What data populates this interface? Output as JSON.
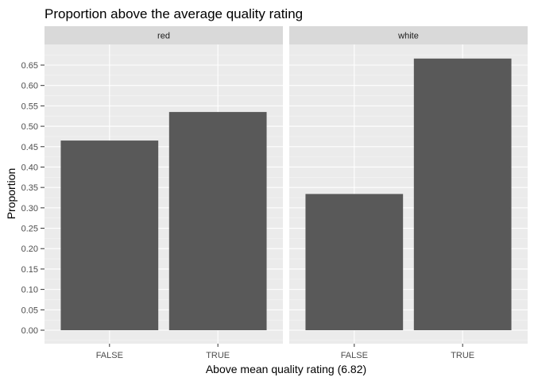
{
  "chart_data": {
    "type": "bar",
    "title": "Proportion above the average quality rating",
    "xlabel": "Above mean quality rating (6.82)",
    "ylabel": "Proportion",
    "ylim": [
      0,
      0.685
    ],
    "yticks": [
      "0.00",
      "0.05",
      "0.10",
      "0.15",
      "0.20",
      "0.25",
      "0.30",
      "0.35",
      "0.40",
      "0.45",
      "0.50",
      "0.55",
      "0.60",
      "0.65"
    ],
    "categories": [
      "FALSE",
      "TRUE"
    ],
    "grid": true,
    "bar_color": "#595959",
    "panel_background": "#ebebeb",
    "strip_background": "#d9d9d9",
    "facets": [
      {
        "label": "red",
        "values": [
          0.465,
          0.535
        ]
      },
      {
        "label": "white",
        "values": [
          0.334,
          0.666
        ]
      }
    ]
  }
}
